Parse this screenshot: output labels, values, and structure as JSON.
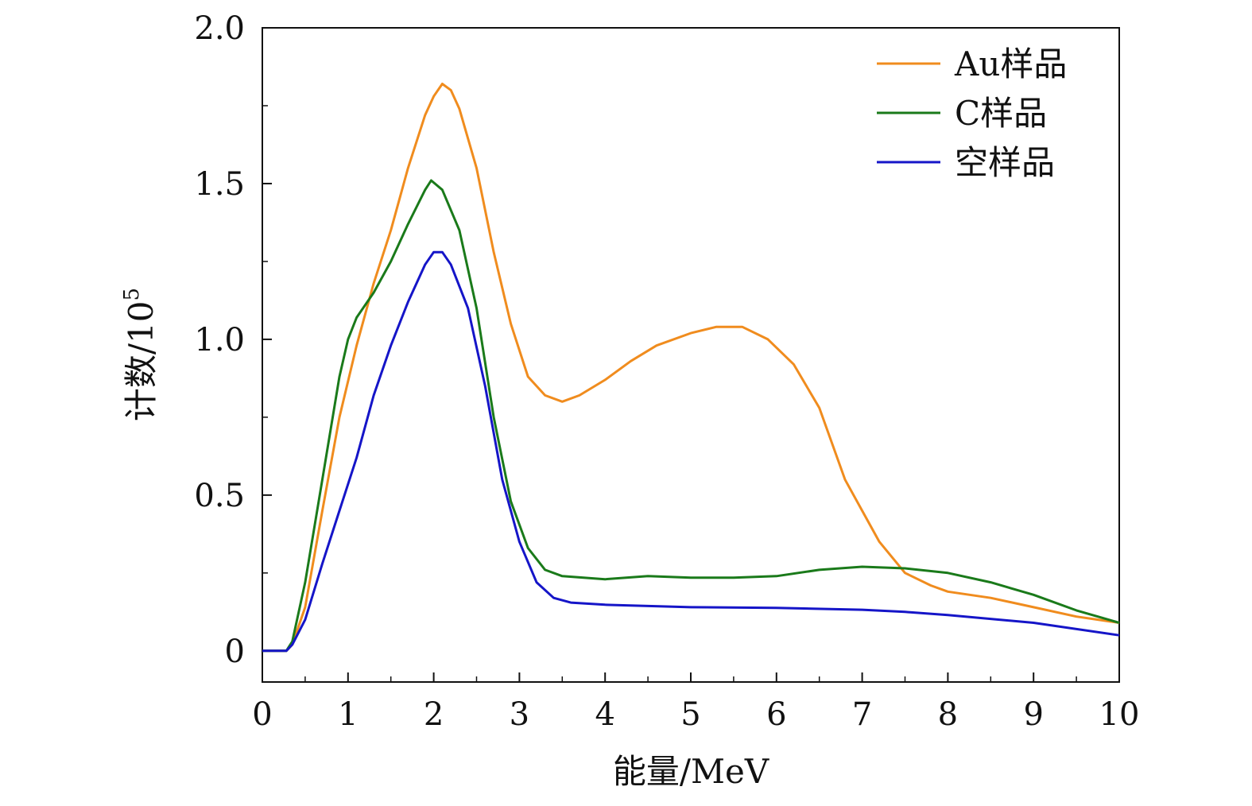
{
  "chart_data": {
    "type": "line",
    "title": "",
    "xlabel": "能量/MeV",
    "ylabel_main": "计数/10",
    "ylabel_exp": "5",
    "xlim": [
      0,
      10
    ],
    "ylim": [
      -0.1,
      2.0
    ],
    "x_ticks": [
      0,
      1,
      2,
      3,
      4,
      5,
      6,
      7,
      8,
      9,
      10
    ],
    "y_ticks": [
      0,
      0.5,
      1.0,
      1.5,
      2.0
    ],
    "x_tick_labels": [
      "0",
      "1",
      "2",
      "3",
      "4",
      "5",
      "6",
      "7",
      "8",
      "9",
      "10"
    ],
    "y_tick_labels": [
      "0",
      "0.5",
      "1.0",
      "1.5",
      "2.0"
    ],
    "grid": false,
    "legend_position": "top-right",
    "series": [
      {
        "name": "Au样品",
        "color": "#f08c1e",
        "points": [
          [
            0,
            0
          ],
          [
            0.28,
            0
          ],
          [
            0.35,
            0.02
          ],
          [
            0.5,
            0.14
          ],
          [
            0.7,
            0.45
          ],
          [
            0.9,
            0.75
          ],
          [
            1.1,
            0.98
          ],
          [
            1.3,
            1.18
          ],
          [
            1.5,
            1.35
          ],
          [
            1.7,
            1.55
          ],
          [
            1.9,
            1.72
          ],
          [
            2.0,
            1.78
          ],
          [
            2.1,
            1.82
          ],
          [
            2.2,
            1.8
          ],
          [
            2.3,
            1.74
          ],
          [
            2.5,
            1.55
          ],
          [
            2.7,
            1.28
          ],
          [
            2.9,
            1.05
          ],
          [
            3.1,
            0.88
          ],
          [
            3.3,
            0.82
          ],
          [
            3.5,
            0.8
          ],
          [
            3.7,
            0.82
          ],
          [
            4.0,
            0.87
          ],
          [
            4.3,
            0.93
          ],
          [
            4.6,
            0.98
          ],
          [
            5.0,
            1.02
          ],
          [
            5.3,
            1.04
          ],
          [
            5.6,
            1.04
          ],
          [
            5.9,
            1.0
          ],
          [
            6.2,
            0.92
          ],
          [
            6.5,
            0.78
          ],
          [
            6.8,
            0.55
          ],
          [
            7.0,
            0.45
          ],
          [
            7.2,
            0.35
          ],
          [
            7.5,
            0.25
          ],
          [
            7.8,
            0.21
          ],
          [
            8.0,
            0.19
          ],
          [
            8.5,
            0.17
          ],
          [
            9.0,
            0.14
          ],
          [
            9.5,
            0.11
          ],
          [
            10.0,
            0.09
          ]
        ]
      },
      {
        "name": "C样品",
        "color": "#1a7a1a",
        "points": [
          [
            0,
            0
          ],
          [
            0.28,
            0
          ],
          [
            0.35,
            0.03
          ],
          [
            0.5,
            0.22
          ],
          [
            0.7,
            0.55
          ],
          [
            0.9,
            0.88
          ],
          [
            1.0,
            1.0
          ],
          [
            1.1,
            1.07
          ],
          [
            1.3,
            1.15
          ],
          [
            1.5,
            1.25
          ],
          [
            1.7,
            1.37
          ],
          [
            1.9,
            1.48
          ],
          [
            1.97,
            1.51
          ],
          [
            2.1,
            1.48
          ],
          [
            2.3,
            1.35
          ],
          [
            2.5,
            1.1
          ],
          [
            2.7,
            0.75
          ],
          [
            2.9,
            0.48
          ],
          [
            3.1,
            0.33
          ],
          [
            3.3,
            0.26
          ],
          [
            3.5,
            0.24
          ],
          [
            4.0,
            0.23
          ],
          [
            4.5,
            0.24
          ],
          [
            5.0,
            0.235
          ],
          [
            5.5,
            0.235
          ],
          [
            6.0,
            0.24
          ],
          [
            6.5,
            0.26
          ],
          [
            7.0,
            0.27
          ],
          [
            7.5,
            0.265
          ],
          [
            8.0,
            0.25
          ],
          [
            8.5,
            0.22
          ],
          [
            9.0,
            0.18
          ],
          [
            9.5,
            0.13
          ],
          [
            10.0,
            0.09
          ]
        ]
      },
      {
        "name": "空样品",
        "color": "#1515c8",
        "points": [
          [
            0,
            0
          ],
          [
            0.28,
            0
          ],
          [
            0.35,
            0.02
          ],
          [
            0.5,
            0.1
          ],
          [
            0.7,
            0.28
          ],
          [
            0.9,
            0.45
          ],
          [
            1.1,
            0.62
          ],
          [
            1.3,
            0.82
          ],
          [
            1.5,
            0.98
          ],
          [
            1.7,
            1.12
          ],
          [
            1.9,
            1.24
          ],
          [
            2.0,
            1.28
          ],
          [
            2.1,
            1.28
          ],
          [
            2.2,
            1.24
          ],
          [
            2.4,
            1.1
          ],
          [
            2.6,
            0.85
          ],
          [
            2.8,
            0.55
          ],
          [
            3.0,
            0.35
          ],
          [
            3.2,
            0.22
          ],
          [
            3.4,
            0.17
          ],
          [
            3.6,
            0.155
          ],
          [
            4.0,
            0.148
          ],
          [
            5.0,
            0.14
          ],
          [
            6.0,
            0.138
          ],
          [
            7.0,
            0.132
          ],
          [
            7.5,
            0.125
          ],
          [
            8.0,
            0.115
          ],
          [
            9.0,
            0.09
          ],
          [
            10.0,
            0.05
          ]
        ]
      }
    ]
  }
}
